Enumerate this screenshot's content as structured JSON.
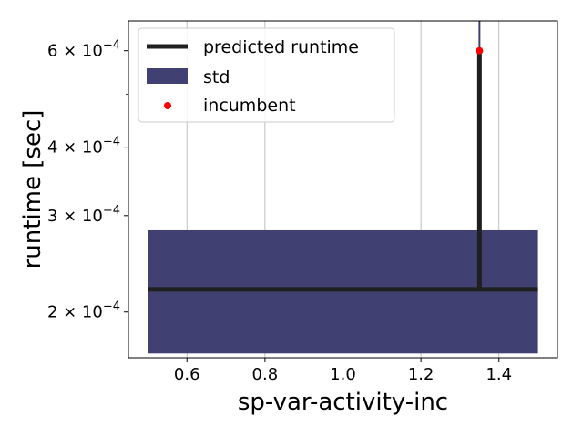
{
  "chart_data": {
    "type": "line",
    "xlabel": "sp-var-activity-inc",
    "ylabel": "runtime [sec]",
    "xlim": [
      0.45,
      1.55
    ],
    "ylim": [
      0.000165,
      0.00068
    ],
    "yscale": "log",
    "grid": "x-major-only",
    "x_ticks": [
      0.6,
      0.8,
      1.0,
      1.2,
      1.4
    ],
    "x_tick_labels": [
      "0.6",
      "0.8",
      "1.0",
      "1.2",
      "1.4"
    ],
    "y_ticks": [
      0.0002,
      0.0003,
      0.0004,
      0.0006
    ],
    "y_tick_labels": [
      {
        "mantissa": "2",
        "base": "10",
        "exp": "−4"
      },
      {
        "mantissa": "3",
        "base": "10",
        "exp": "−4"
      },
      {
        "mantissa": "4",
        "base": "10",
        "exp": "−4"
      },
      {
        "mantissa": "6",
        "base": "10",
        "exp": "−4"
      }
    ],
    "y_minor_ticks": [
      0.0005
    ],
    "legend_position": "upper-left",
    "series": [
      {
        "name": "predicted runtime",
        "kind": "line",
        "color": "#1f1f1f",
        "x": [
          0.5,
          1.35,
          1.35,
          1.35,
          1.5
        ],
        "y": [
          0.00022,
          0.00022,
          0.0006,
          0.00022,
          0.00022
        ]
      },
      {
        "name": "std",
        "kind": "band",
        "color": "#414073",
        "x": [
          0.5,
          1.5
        ],
        "y_low": [
          0.000168,
          0.000168
        ],
        "y_high": [
          0.000282,
          0.000282
        ],
        "spike": {
          "x": 1.35,
          "y_low": 0.000225,
          "y_high": 0.00068
        }
      },
      {
        "name": "incumbent",
        "kind": "scatter",
        "color": "#ff0000",
        "x": [
          1.35
        ],
        "y": [
          0.0006
        ]
      }
    ]
  }
}
